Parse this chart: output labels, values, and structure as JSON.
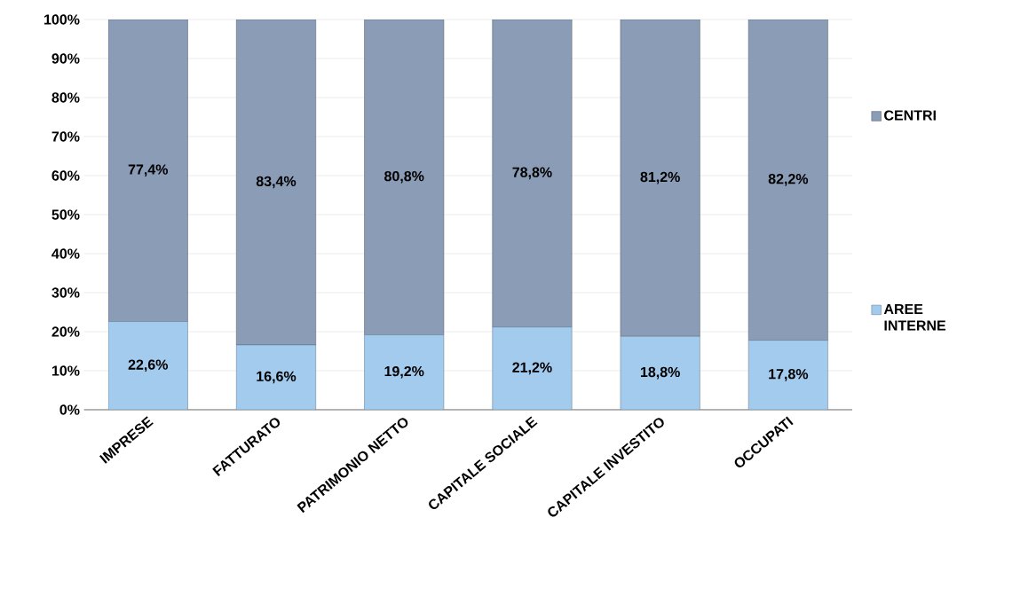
{
  "chart_data": {
    "type": "bar",
    "stacked": true,
    "categories": [
      "IMPRESE",
      "FATTURATO",
      "PATRIMONIO NETTO",
      "CAPITALE SOCIALE",
      "CAPITALE INVESTITO",
      "OCCUPATI"
    ],
    "series": [
      {
        "name": "AREE INTERNE",
        "color": "#a3cbee",
        "values": [
          22.6,
          16.6,
          19.2,
          21.2,
          18.8,
          17.8
        ],
        "value_labels": [
          "22,6%",
          "16,6%",
          "19,2%",
          "21,2%",
          "18,8%",
          "17,8%"
        ]
      },
      {
        "name": "CENTRI",
        "color": "#8a9cb6",
        "values": [
          77.4,
          83.4,
          80.8,
          78.8,
          81.2,
          82.2
        ],
        "value_labels": [
          "77,4%",
          "83,4%",
          "80,8%",
          "78,8%",
          "81,2%",
          "82,2%"
        ]
      }
    ],
    "ylim": [
      0,
      100
    ],
    "yticks": [
      {
        "value": 0,
        "label": "0%"
      },
      {
        "value": 10,
        "label": "10%"
      },
      {
        "value": 20,
        "label": "20%"
      },
      {
        "value": 30,
        "label": "30%"
      },
      {
        "value": 40,
        "label": "40%"
      },
      {
        "value": 50,
        "label": "50%"
      },
      {
        "value": 60,
        "label": "60%"
      },
      {
        "value": 70,
        "label": "70%"
      },
      {
        "value": 80,
        "label": "80%"
      },
      {
        "value": 90,
        "label": "90%"
      },
      {
        "value": 100,
        "label": "100%"
      }
    ],
    "grid": "y",
    "legend": "right"
  }
}
